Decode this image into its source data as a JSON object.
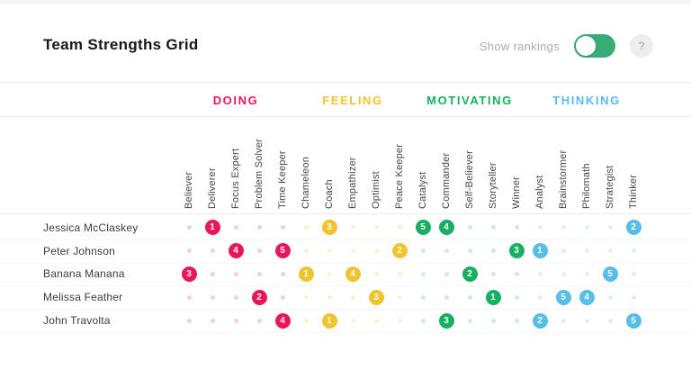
{
  "header": {
    "title": "Team Strengths Grid",
    "toggle_label": "Show rankings",
    "toggle_state": "on",
    "help_label": "?"
  },
  "colors": {
    "doing": "#e8175d",
    "feeling": "#f0c330",
    "motivating": "#18af63",
    "thinking": "#57bde9",
    "toggle_on": "#38ac78"
  },
  "categories": [
    {
      "key": "doing",
      "label": "DOING"
    },
    {
      "key": "feeling",
      "label": "FEELING"
    },
    {
      "key": "motivating",
      "label": "MOTIVATING"
    },
    {
      "key": "thinking",
      "label": "THINKING"
    }
  ],
  "columns": [
    {
      "name": "Believer",
      "category": "doing"
    },
    {
      "name": "Deliverer",
      "category": "doing"
    },
    {
      "name": "Focus Expert",
      "category": "doing"
    },
    {
      "name": "Problem Solver",
      "category": "doing"
    },
    {
      "name": "Time Keeper",
      "category": "doing"
    },
    {
      "name": "Chameleon",
      "category": "feeling"
    },
    {
      "name": "Coach",
      "category": "feeling"
    },
    {
      "name": "Empathizer",
      "category": "feeling"
    },
    {
      "name": "Optimist",
      "category": "feeling"
    },
    {
      "name": "Peace Keeper",
      "category": "feeling"
    },
    {
      "name": "Catalyst",
      "category": "motivating"
    },
    {
      "name": "Commander",
      "category": "motivating"
    },
    {
      "name": "Self-Believer",
      "category": "motivating"
    },
    {
      "name": "Storyteller",
      "category": "motivating"
    },
    {
      "name": "Winner",
      "category": "motivating"
    },
    {
      "name": "Analyst",
      "category": "thinking"
    },
    {
      "name": "Brainstormer",
      "category": "thinking"
    },
    {
      "name": "Philomath",
      "category": "thinking"
    },
    {
      "name": "Strategist",
      "category": "thinking"
    },
    {
      "name": "Thinker",
      "category": "thinking"
    }
  ],
  "rows": [
    {
      "name": "Jessica McClaskey",
      "rankings": {
        "Deliverer": 1,
        "Coach": 3,
        "Catalyst": 5,
        "Commander": 4,
        "Thinker": 2
      }
    },
    {
      "name": "Peter Johnson",
      "rankings": {
        "Focus Expert": 4,
        "Time Keeper": 5,
        "Peace Keeper": 2,
        "Winner": 3,
        "Analyst": 1
      }
    },
    {
      "name": "Banana Manana",
      "rankings": {
        "Believer": 3,
        "Chameleon": 1,
        "Empathizer": 4,
        "Self-Believer": 2,
        "Strategist": 5
      }
    },
    {
      "name": "Melissa Feather",
      "rankings": {
        "Problem Solver": 2,
        "Optimist": 3,
        "Storyteller": 1,
        "Brainstormer": 5,
        "Philomath": 4
      }
    },
    {
      "name": "John Travolta",
      "rankings": {
        "Time Keeper": 4,
        "Coach": 1,
        "Commander": 3,
        "Analyst": 2,
        "Thinker": 5
      }
    }
  ]
}
